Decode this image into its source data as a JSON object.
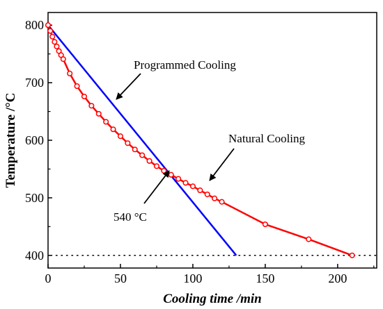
{
  "chart_data": {
    "type": "line",
    "xlabel": "Cooling time /min",
    "ylabel": "Temperature /°C",
    "xlim": [
      0,
      227
    ],
    "ylim": [
      378,
      822
    ],
    "x_ticks": [
      0,
      50,
      100,
      150,
      200
    ],
    "y_ticks": [
      400,
      500,
      600,
      700,
      800
    ],
    "grid": false,
    "series": [
      {
        "name": "Programmed Cooling",
        "color": "#0000ff",
        "marker": "none",
        "x": [
          0,
          130
        ],
        "y": [
          800,
          400
        ]
      },
      {
        "name": "Natural Cooling",
        "color": "#ff0000",
        "marker": "open-circle",
        "x": [
          0,
          1.5,
          3,
          4.5,
          6,
          7.5,
          9,
          10.5,
          15,
          20,
          25,
          30,
          35,
          40,
          45,
          50,
          55,
          60,
          65,
          70,
          75,
          80,
          85,
          90,
          95,
          100,
          105,
          110,
          115,
          120,
          150,
          180,
          210
        ],
        "y": [
          800,
          790,
          780,
          771,
          763,
          755,
          748,
          741,
          716,
          694,
          676,
          660,
          646,
          632,
          619,
          607,
          595,
          584,
          574,
          564,
          555,
          547,
          540,
          533,
          526,
          520,
          513,
          506,
          499,
          493,
          454,
          428,
          400
        ]
      }
    ],
    "reference_line": {
      "y": 400,
      "style": "dotted",
      "color": "#000000"
    },
    "annotations": [
      {
        "text": "Programmed Cooling",
        "series": "Programmed Cooling"
      },
      {
        "text": "Natural Cooling",
        "series": "Natural Cooling"
      },
      {
        "text": "540 °C",
        "point": [
          85,
          540
        ]
      }
    ]
  }
}
